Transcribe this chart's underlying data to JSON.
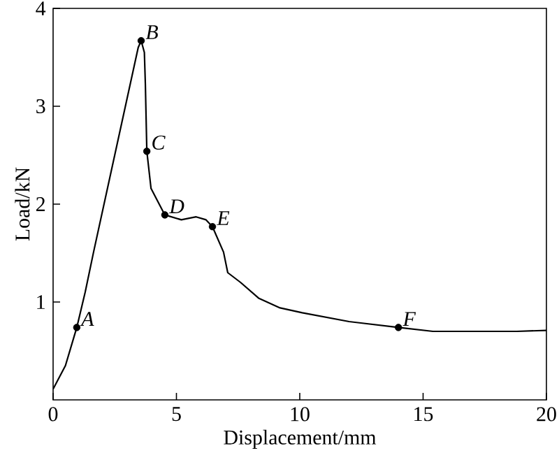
{
  "chart_data": {
    "type": "line",
    "xlabel": "Displacement/mm",
    "ylabel": "Load/kN",
    "xlim": [
      0,
      20
    ],
    "ylim": [
      0,
      4
    ],
    "xticks": [
      0,
      5,
      10,
      15,
      20
    ],
    "yticks": [
      1,
      2,
      3,
      4
    ],
    "series": [
      {
        "color": "#000000",
        "marker": "none",
        "x": [
          0,
          0.5,
          0.96,
          1.3,
          1.64,
          3.45,
          3.57,
          3.7,
          3.74,
          3.8,
          3.97,
          4.53,
          5.2,
          5.8,
          6.2,
          6.46,
          6.91,
          7.08,
          7.6,
          8.33,
          9.2,
          10.1,
          12,
          14,
          15.4,
          17.1,
          18.8,
          20
        ],
        "values": [
          0.11,
          0.35,
          0.74,
          1.1,
          1.51,
          3.6,
          3.67,
          3.55,
          3.23,
          2.54,
          2.16,
          1.89,
          1.84,
          1.87,
          1.84,
          1.77,
          1.51,
          1.3,
          1.2,
          1.04,
          0.94,
          0.89,
          0.8,
          0.74,
          0.7,
          0.7,
          0.7,
          0.71
        ]
      },
      {
        "type": "scatter",
        "color": "#000000",
        "marker": "circle",
        "x": [
          0.96,
          3.57,
          3.8,
          4.53,
          6.46,
          14
        ],
        "values": [
          0.74,
          3.67,
          2.54,
          1.89,
          1.77,
          0.74
        ]
      }
    ],
    "annotations": [
      {
        "text": "A",
        "x": 0.96,
        "y": 0.74
      },
      {
        "text": "B",
        "x": 3.57,
        "y": 3.67
      },
      {
        "text": "C",
        "x": 3.8,
        "y": 2.54
      },
      {
        "text": "D",
        "x": 4.53,
        "y": 1.89
      },
      {
        "text": "E",
        "x": 6.46,
        "y": 1.77
      },
      {
        "text": "F",
        "x": 14,
        "y": 0.74
      }
    ]
  }
}
